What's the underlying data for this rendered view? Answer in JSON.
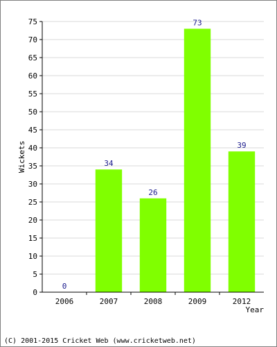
{
  "chart_data": {
    "type": "bar",
    "categories": [
      "2006",
      "2007",
      "2008",
      "2009",
      "2012"
    ],
    "values": [
      0,
      34,
      26,
      73,
      39
    ],
    "data_labels": [
      "0",
      "34",
      "26",
      "73",
      "39"
    ],
    "xlabel": "Year",
    "ylabel": "Wickets",
    "ylim": [
      0,
      75
    ],
    "yticks": [
      0,
      5,
      10,
      15,
      20,
      25,
      30,
      35,
      40,
      45,
      50,
      55,
      60,
      65,
      70,
      75
    ],
    "grid": true,
    "bar_color": "#80ff00",
    "grid_color": "#d9d9d9"
  },
  "footer": {
    "credit": "(C) 2001-2015 Cricket Web (www.cricketweb.net)"
  }
}
